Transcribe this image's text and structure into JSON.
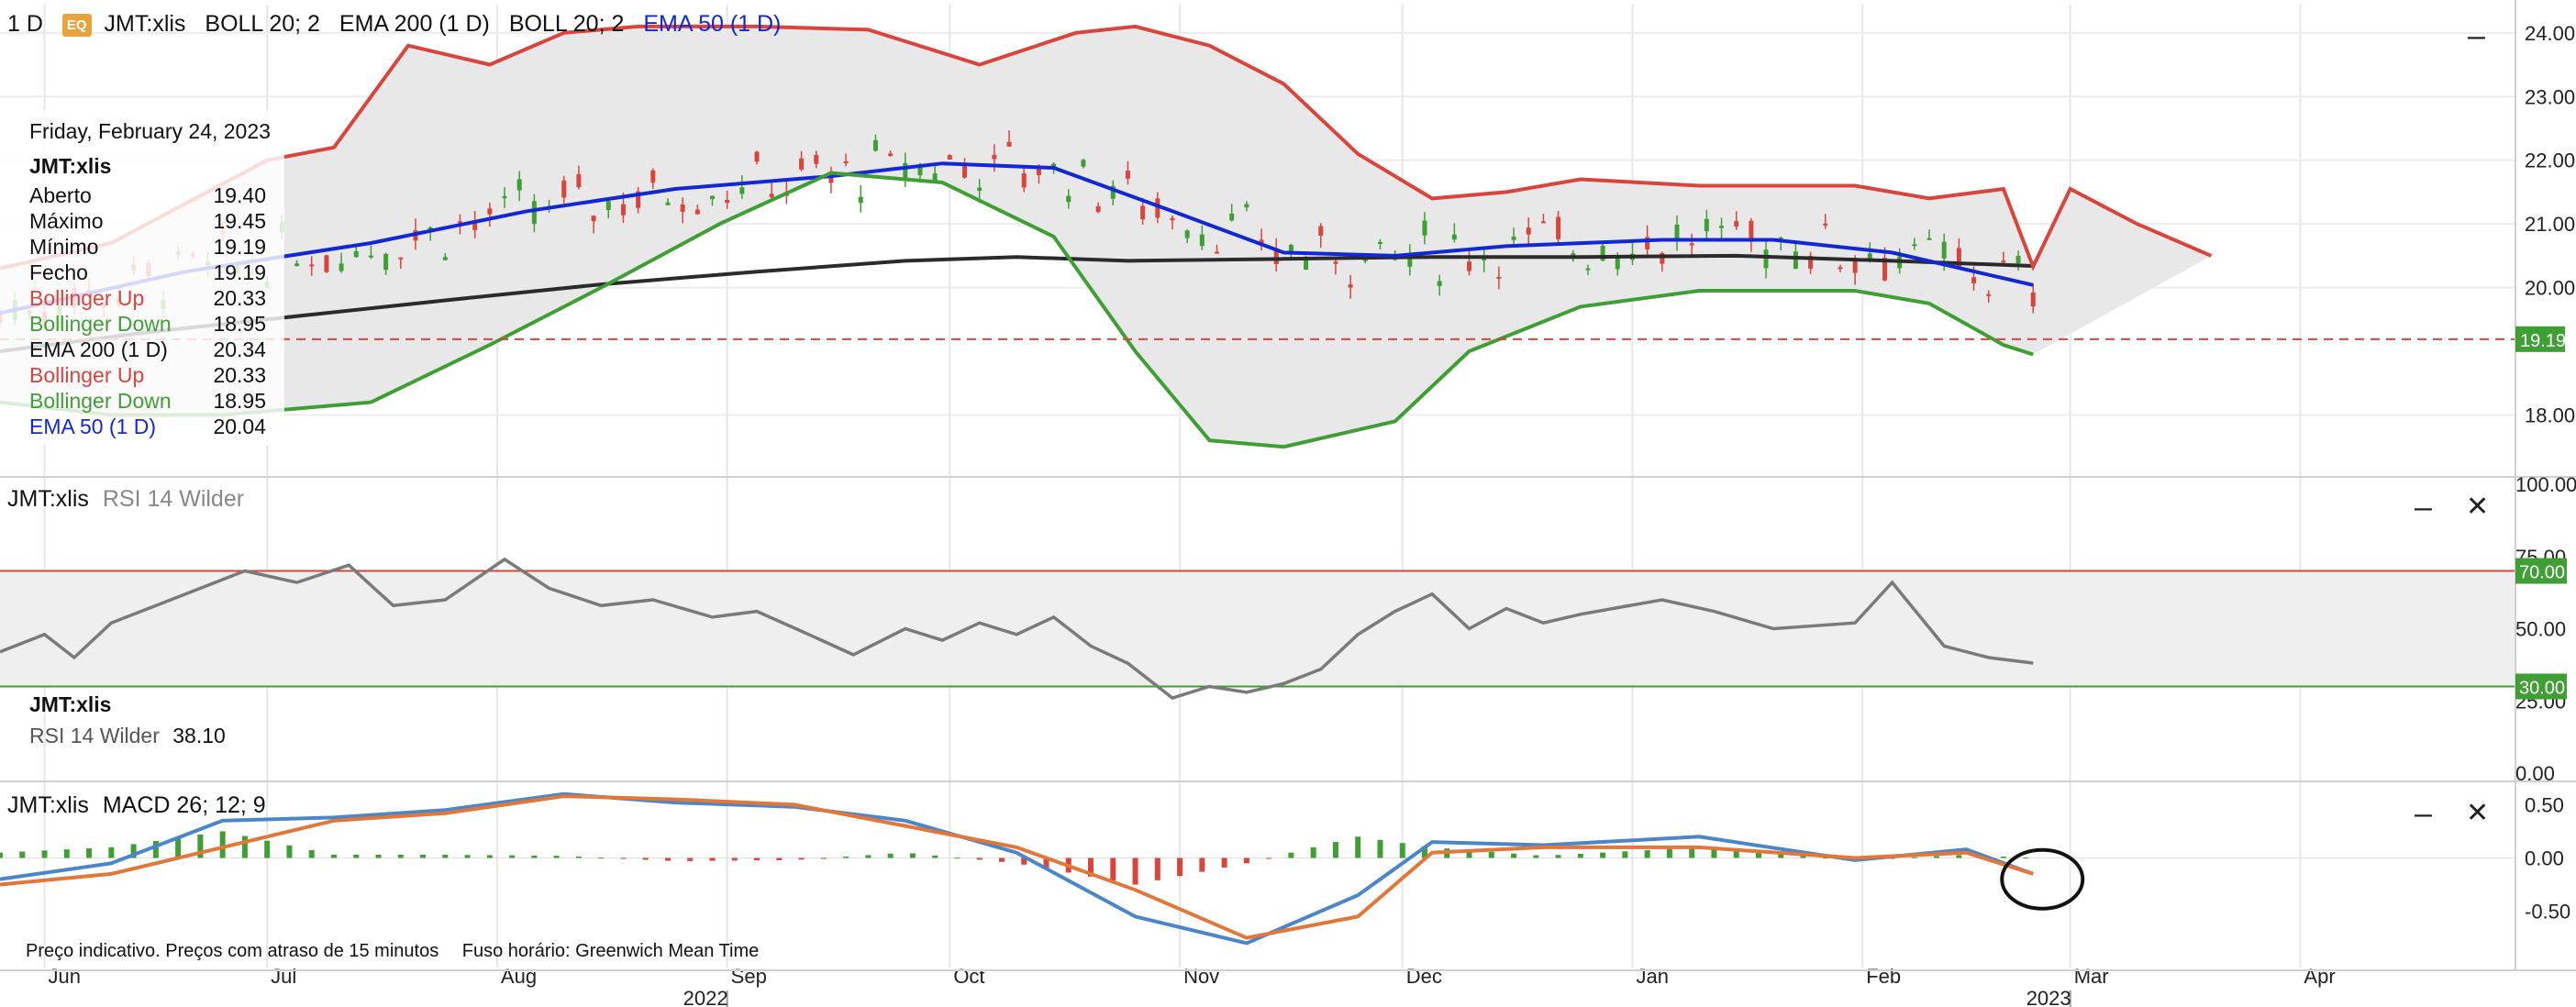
{
  "header": {
    "interval": "1 D",
    "badge": "EQ",
    "symbol": "JMT:xlis",
    "study1": "BOLL 20; 2",
    "study2": "EMA 200 (1 D)",
    "study3": "BOLL 20; 2",
    "study4": "EMA 50 (1 D)"
  },
  "legend": {
    "date": "Friday, February 24, 2023",
    "symbol": "JMT:xlis",
    "rows": [
      {
        "label": "Aberto",
        "value": "19.40",
        "color": "#111111"
      },
      {
        "label": "Máximo",
        "value": "19.45",
        "color": "#111111"
      },
      {
        "label": "Mínimo",
        "value": "19.19",
        "color": "#111111"
      },
      {
        "label": "Fecho",
        "value": "19.19",
        "color": "#111111"
      },
      {
        "label": "Bollinger Up",
        "value": "20.33",
        "color": "#d9453d"
      },
      {
        "label": "Bollinger Down",
        "value": "18.95",
        "color": "#3f9f35"
      },
      {
        "label": "EMA 200 (1 D)",
        "value": "20.34",
        "color": "#111111"
      },
      {
        "label": "Bollinger Up",
        "value": "20.33",
        "color": "#d9453d"
      },
      {
        "label": "Bollinger Down",
        "value": "18.95",
        "color": "#3f9f35"
      },
      {
        "label": "EMA 50 (1 D)",
        "value": "20.04",
        "color": "#1228d6"
      }
    ]
  },
  "rsi_panel": {
    "symbol": "JMT:xlis",
    "study": "RSI 14 Wilder",
    "legend_symbol": "JMT:xlis",
    "legend_label": "RSI 14 Wilder",
    "legend_value": "38.10"
  },
  "macd_panel": {
    "symbol": "JMT:xlis",
    "study": "MACD 26; 12; 9"
  },
  "footer": {
    "delay_note": "Preço indicativo. Preços com atraso de 15 minutos",
    "timezone": "Fuso horário: Greenwich Mean Time"
  },
  "controls": {
    "minimize": "–",
    "close": "✕"
  },
  "colors": {
    "boll_up": "#d9453d",
    "boll_down": "#3f9f35",
    "ema200": "#2b2b2b",
    "ema50": "#1228d6",
    "candle_up": "#3f9f35",
    "candle_down": "#d9453d",
    "rsi": "#7a7a7a",
    "macd_line": "#4a86c8",
    "signal_line": "#e2773a",
    "price_tag": "#3f9f35"
  },
  "chart_data": {
    "type": "candlestick",
    "x_axis": {
      "month_labels": [
        "Jun",
        "Jul",
        "Aug",
        "Sep",
        "Oct",
        "Nov",
        "Dec",
        "Jan",
        "Feb",
        "Mar",
        "Apr"
      ],
      "year_labels": [
        {
          "label": "2022",
          "at": "Sep"
        },
        {
          "label": "2023",
          "at": "Mar"
        }
      ],
      "start": "2022-05-26",
      "end": "2023-04-30"
    },
    "last_date": "2023-02-24",
    "price_panel": {
      "ylim": [
        17.2,
        24.3
      ],
      "y_ticks": [
        "24.00",
        "23.00",
        "22.00",
        "21.00",
        "20.00",
        "19.19",
        "18.00"
      ],
      "last_price": "19.19",
      "ema200": [
        [
          "2022-05-26",
          19.0
        ],
        [
          "2022-06-15",
          19.3
        ],
        [
          "2022-07-05",
          19.55
        ],
        [
          "2022-07-25",
          19.8
        ],
        [
          "2022-08-15",
          20.05
        ],
        [
          "2022-09-05",
          20.25
        ],
        [
          "2022-09-25",
          20.42
        ],
        [
          "2022-10-10",
          20.48
        ],
        [
          "2022-10-25",
          20.42
        ],
        [
          "2022-11-15",
          20.45
        ],
        [
          "2022-12-05",
          20.48
        ],
        [
          "2022-12-25",
          20.48
        ],
        [
          "2023-01-15",
          20.5
        ],
        [
          "2023-02-05",
          20.42
        ],
        [
          "2023-02-24",
          20.34
        ]
      ],
      "ema50": [
        [
          "2022-05-26",
          19.6
        ],
        [
          "2022-06-20",
          20.25
        ],
        [
          "2022-07-15",
          20.7
        ],
        [
          "2022-08-05",
          21.2
        ],
        [
          "2022-08-25",
          21.55
        ],
        [
          "2022-09-15",
          21.75
        ],
        [
          "2022-09-30",
          21.95
        ],
        [
          "2022-10-15",
          21.88
        ],
        [
          "2022-10-31",
          21.2
        ],
        [
          "2022-11-15",
          20.55
        ],
        [
          "2022-11-30",
          20.5
        ],
        [
          "2022-12-15",
          20.65
        ],
        [
          "2023-01-05",
          20.75
        ],
        [
          "2023-01-20",
          20.75
        ],
        [
          "2023-02-05",
          20.55
        ],
        [
          "2023-02-24",
          20.04
        ]
      ],
      "boll_up": [
        [
          "2022-05-26",
          20.3
        ],
        [
          "2022-06-10",
          20.7
        ],
        [
          "2022-07-01",
          22.0
        ],
        [
          "2022-07-10",
          22.2
        ],
        [
          "2022-07-20",
          23.8
        ],
        [
          "2022-07-31",
          23.5
        ],
        [
          "2022-08-10",
          24.0
        ],
        [
          "2022-08-20",
          24.1
        ],
        [
          "2022-09-05",
          24.1
        ],
        [
          "2022-09-20",
          24.05
        ],
        [
          "2022-10-05",
          23.5
        ],
        [
          "2022-10-18",
          24.0
        ],
        [
          "2022-10-26",
          24.1
        ],
        [
          "2022-11-05",
          23.8
        ],
        [
          "2022-11-15",
          23.2
        ],
        [
          "2022-11-25",
          22.1
        ],
        [
          "2022-12-05",
          21.4
        ],
        [
          "2022-12-15",
          21.5
        ],
        [
          "2022-12-25",
          21.7
        ],
        [
          "2023-01-10",
          21.6
        ],
        [
          "2023-01-31",
          21.6
        ],
        [
          "2023-02-10",
          21.4
        ],
        [
          "2023-02-20",
          21.55
        ],
        [
          "2023-03-01",
          21.55
        ],
        [
          "2023-03-10",
          21.0
        ],
        [
          "2023-03-20",
          20.5
        ],
        [
          "2023-02-24",
          20.33
        ]
      ],
      "boll_down": [
        [
          "2022-05-26",
          18.2
        ],
        [
          "2022-06-10",
          18.0
        ],
        [
          "2022-06-25",
          18.0
        ],
        [
          "2022-07-15",
          18.2
        ],
        [
          "2022-07-31",
          19.1
        ],
        [
          "2022-08-15",
          20.0
        ],
        [
          "2022-08-31",
          21.0
        ],
        [
          "2022-09-15",
          21.8
        ],
        [
          "2022-09-30",
          21.65
        ],
        [
          "2022-10-15",
          20.8
        ],
        [
          "2022-10-26",
          19.0
        ],
        [
          "2022-11-05",
          17.6
        ],
        [
          "2022-11-15",
          17.5
        ],
        [
          "2022-11-30",
          17.9
        ],
        [
          "2022-12-10",
          19.0
        ],
        [
          "2022-12-25",
          19.7
        ],
        [
          "2023-01-10",
          19.95
        ],
        [
          "2023-01-31",
          19.95
        ],
        [
          "2023-02-10",
          19.75
        ],
        [
          "2023-02-20",
          19.1
        ],
        [
          "2023-02-24",
          18.95
        ]
      ]
    },
    "rsi_panel": {
      "ylim": [
        0,
        100
      ],
      "y_ticks": [
        "100.00",
        "75.00",
        "50.00",
        "25.00",
        "0.00"
      ],
      "overbought": 70,
      "oversold": 30,
      "last_value": 38.1,
      "series": [
        [
          "2022-05-26",
          42
        ],
        [
          "2022-06-01",
          48
        ],
        [
          "2022-06-05",
          40
        ],
        [
          "2022-06-10",
          52
        ],
        [
          "2022-06-20",
          62
        ],
        [
          "2022-06-28",
          70
        ],
        [
          "2022-07-05",
          66
        ],
        [
          "2022-07-12",
          72
        ],
        [
          "2022-07-18",
          58
        ],
        [
          "2022-07-25",
          60
        ],
        [
          "2022-08-02",
          74
        ],
        [
          "2022-08-08",
          64
        ],
        [
          "2022-08-15",
          58
        ],
        [
          "2022-08-22",
          60
        ],
        [
          "2022-08-30",
          54
        ],
        [
          "2022-09-05",
          56
        ],
        [
          "2022-09-12",
          48
        ],
        [
          "2022-09-18",
          41
        ],
        [
          "2022-09-25",
          50
        ],
        [
          "2022-09-30",
          46
        ],
        [
          "2022-10-05",
          52
        ],
        [
          "2022-10-10",
          48
        ],
        [
          "2022-10-15",
          54
        ],
        [
          "2022-10-20",
          44
        ],
        [
          "2022-10-25",
          38
        ],
        [
          "2022-10-31",
          26
        ],
        [
          "2022-11-05",
          30
        ],
        [
          "2022-11-10",
          28
        ],
        [
          "2022-11-15",
          31
        ],
        [
          "2022-11-20",
          36
        ],
        [
          "2022-11-25",
          48
        ],
        [
          "2022-11-30",
          56
        ],
        [
          "2022-12-05",
          62
        ],
        [
          "2022-12-10",
          50
        ],
        [
          "2022-12-15",
          57
        ],
        [
          "2022-12-20",
          52
        ],
        [
          "2022-12-25",
          55
        ],
        [
          "2023-01-05",
          60
        ],
        [
          "2023-01-12",
          56
        ],
        [
          "2023-01-20",
          50
        ],
        [
          "2023-01-31",
          52
        ],
        [
          "2023-02-05",
          66
        ],
        [
          "2023-02-12",
          44
        ],
        [
          "2023-02-18",
          40
        ],
        [
          "2023-02-24",
          38.1
        ]
      ]
    },
    "macd_panel": {
      "ylim": [
        -0.9,
        0.65
      ],
      "y_ticks": [
        "0.50",
        "0.00",
        "-0.50"
      ],
      "macd": [
        [
          "2022-05-26",
          -0.2
        ],
        [
          "2022-06-10",
          -0.05
        ],
        [
          "2022-06-25",
          0.35
        ],
        [
          "2022-07-10",
          0.38
        ],
        [
          "2022-07-25",
          0.45
        ],
        [
          "2022-08-10",
          0.6
        ],
        [
          "2022-08-25",
          0.52
        ],
        [
          "2022-09-10",
          0.48
        ],
        [
          "2022-09-25",
          0.35
        ],
        [
          "2022-10-10",
          0.05
        ],
        [
          "2022-10-26",
          -0.55
        ],
        [
          "2022-11-10",
          -0.8
        ],
        [
          "2022-11-25",
          -0.35
        ],
        [
          "2022-12-05",
          0.15
        ],
        [
          "2022-12-20",
          0.12
        ],
        [
          "2023-01-10",
          0.2
        ],
        [
          "2023-01-31",
          -0.02
        ],
        [
          "2023-02-15",
          0.08
        ],
        [
          "2023-02-24",
          -0.15
        ]
      ],
      "signal": [
        [
          "2022-05-26",
          -0.25
        ],
        [
          "2022-06-10",
          -0.15
        ],
        [
          "2022-06-25",
          0.1
        ],
        [
          "2022-07-10",
          0.35
        ],
        [
          "2022-07-25",
          0.42
        ],
        [
          "2022-08-10",
          0.58
        ],
        [
          "2022-08-25",
          0.55
        ],
        [
          "2022-09-10",
          0.5
        ],
        [
          "2022-09-25",
          0.3
        ],
        [
          "2022-10-10",
          0.1
        ],
        [
          "2022-10-26",
          -0.3
        ],
        [
          "2022-11-10",
          -0.75
        ],
        [
          "2022-11-25",
          -0.55
        ],
        [
          "2022-12-05",
          0.05
        ],
        [
          "2022-12-20",
          0.1
        ],
        [
          "2023-01-10",
          0.1
        ],
        [
          "2023-01-31",
          0.0
        ],
        [
          "2023-02-15",
          0.05
        ],
        [
          "2023-02-24",
          -0.15
        ]
      ]
    }
  }
}
